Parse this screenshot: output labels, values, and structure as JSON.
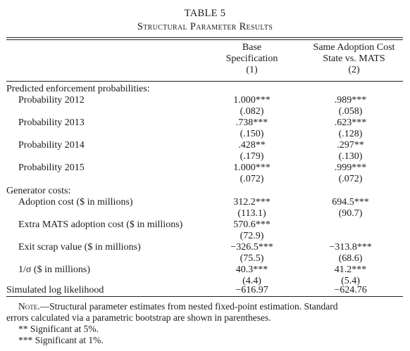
{
  "table": {
    "number": "TABLE 5",
    "caption": "Structural Parameter Results",
    "columns": [
      {
        "line1": "Base",
        "line2": "Specification",
        "num": "(1)"
      },
      {
        "line1": "Same Adoption Cost",
        "line2": "State vs. MATS",
        "num": "(2)"
      }
    ],
    "sections": [
      {
        "heading": "Predicted enforcement probabilities:",
        "rows": [
          {
            "label": "Probability 2012",
            "c1": "1.000***",
            "c2": ".989***",
            "c1_se": "(.082)",
            "c2_se": "(.058)"
          },
          {
            "label": "Probability 2013",
            "c1": ".738***",
            "c2": ".623***",
            "c1_se": "(.150)",
            "c2_se": "(.128)"
          },
          {
            "label": "Probability 2014",
            "c1": ".428**",
            "c2": ".297**",
            "c1_se": "(.179)",
            "c2_se": "(.130)"
          },
          {
            "label": "Probability 2015",
            "c1": "1.000***",
            "c2": ".999***",
            "c1_se": "(.072)",
            "c2_se": "(.072)"
          }
        ]
      },
      {
        "heading": "Generator costs:",
        "rows": [
          {
            "label": "Adoption cost ($ in millions)",
            "c1": "312.2***",
            "c2": "694.5***",
            "c1_se": "(113.1)",
            "c2_se": "(90.7)"
          },
          {
            "label": "Extra MATS adoption cost ($ in millions)",
            "c1": "570.6***",
            "c2": "",
            "c1_se": "(72.9)",
            "c2_se": ""
          },
          {
            "label": "Exit scrap value ($ in millions)",
            "c1": "−326.5***",
            "c2": "−313.8***",
            "c1_se": "(75.5)",
            "c2_se": "(68.6)"
          },
          {
            "label": "1/σ ($ in millions)",
            "c1": "40.3***",
            "c2": "41.2***",
            "c1_se": "(4.4)",
            "c2_se": "(5.4)"
          }
        ]
      }
    ],
    "likelihood": {
      "label": "Simulated log likelihood",
      "c1": "−616.97",
      "c2": "−624.76"
    }
  },
  "note": {
    "lead": "Note.",
    "line1": "—Structural parameter estimates from nested fixed-point estimation. Standard",
    "line2": "errors calculated via a parametric bootstrap are shown in parentheses.",
    "sig5": "** Significant at 5%.",
    "sig1": "*** Significant at 1%."
  }
}
